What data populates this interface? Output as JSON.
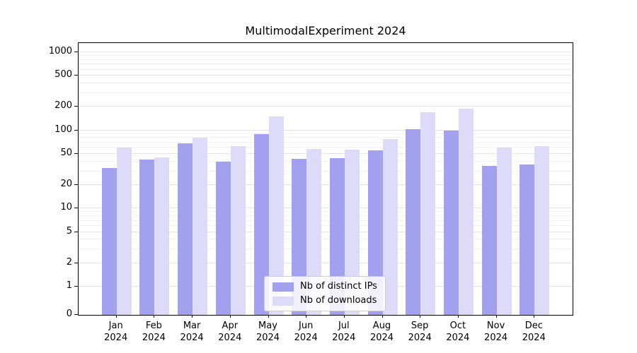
{
  "chart_data": {
    "type": "bar",
    "title": "MultimodalExperiment 2024",
    "categories": [
      "Jan",
      "Feb",
      "Mar",
      "Apr",
      "May",
      "Jun",
      "Jul",
      "Aug",
      "Sep",
      "Oct",
      "Nov",
      "Dec"
    ],
    "year_label": "2024",
    "series": [
      {
        "name": "Nb of distinct IPs",
        "color": "#a1a1ef",
        "values": [
          33,
          42,
          68,
          40,
          90,
          43,
          44,
          56,
          103,
          99,
          35,
          37
        ]
      },
      {
        "name": "Nb of downloads",
        "color": "#dcdcf8",
        "values": [
          60,
          45,
          80,
          63,
          150,
          58,
          57,
          77,
          172,
          188,
          60,
          63
        ]
      }
    ],
    "yscale": "symlog",
    "yticks": [
      0,
      1,
      2,
      5,
      10,
      20,
      50,
      100,
      200,
      500,
      1000
    ],
    "ylim": [
      0,
      1300
    ],
    "grid": true,
    "legend_position": "lower-center",
    "colors": {
      "grid_major": "#e4e4e4",
      "grid_minor": "#f2f2f2",
      "spine": "#000000"
    }
  }
}
